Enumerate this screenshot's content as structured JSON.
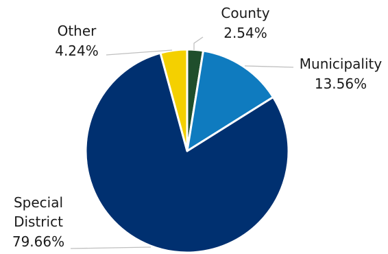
{
  "chart_data": {
    "type": "pie",
    "title": "",
    "start_angle_deg": 0,
    "direction": "clockwise",
    "slices": [
      {
        "label": "County",
        "value": 2.54,
        "value_label": "2.54%",
        "color": "#1f4e2c"
      },
      {
        "label": "Municipality",
        "value": 13.56,
        "value_label": "13.56%",
        "color": "#0f7bbf"
      },
      {
        "label": "Special District",
        "label_lines": [
          "Special",
          "District"
        ],
        "value": 79.66,
        "value_label": "79.66%",
        "color": "#003070"
      },
      {
        "label": "Other",
        "value": 4.24,
        "value_label": "4.24%",
        "color": "#f4d000"
      }
    ]
  }
}
